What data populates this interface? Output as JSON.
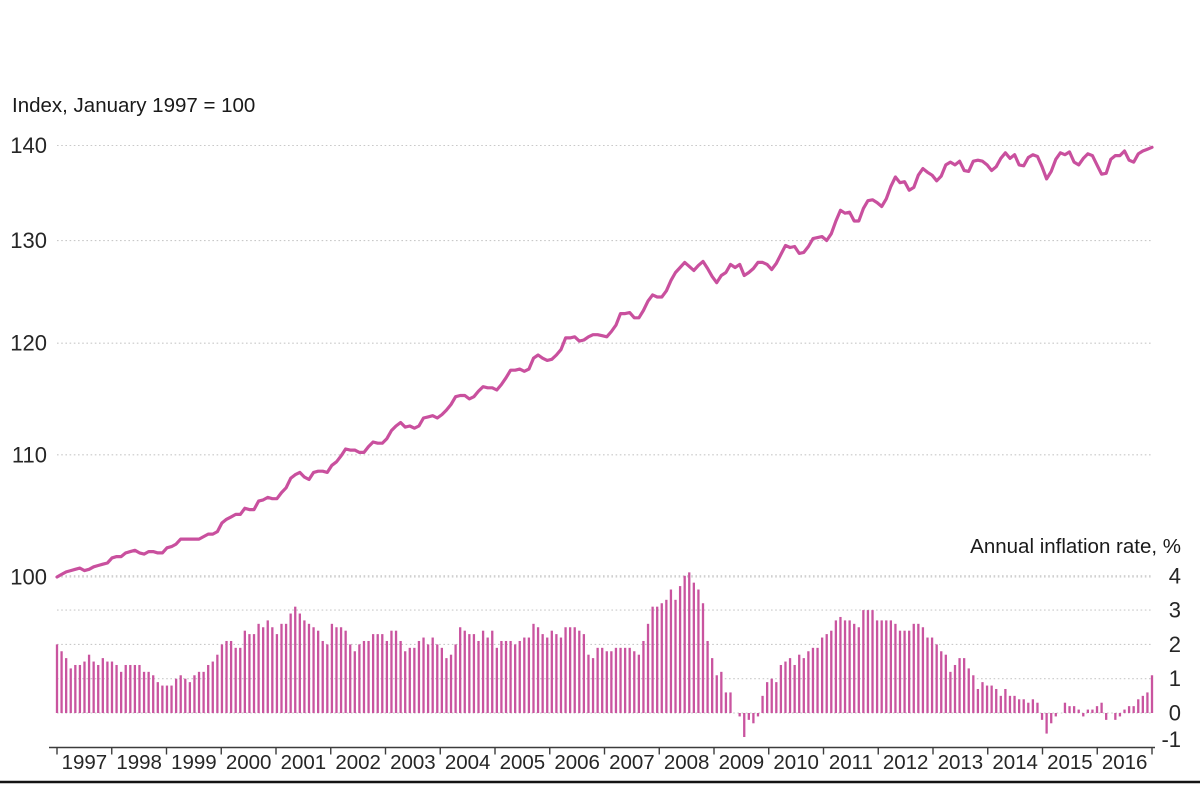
{
  "chart_data": {
    "type": "combo",
    "title": "",
    "left_axis": {
      "title": "Index, January 1997 = 100",
      "ticks": [
        140,
        130,
        120,
        110,
        100
      ],
      "scale": "log",
      "range": [
        100,
        140
      ]
    },
    "right_axis": {
      "title": "Annual inflation rate, %",
      "ticks": [
        4,
        3,
        2,
        1,
        0,
        -1
      ],
      "grid_ticks": [
        4,
        3,
        2,
        1,
        0
      ],
      "scale": "linear",
      "range": [
        -1,
        4
      ]
    },
    "x": {
      "frequency": "monthly",
      "start": "1997-01",
      "end": "2016-12",
      "year_labels": [
        "1997",
        "1998",
        "1999",
        "2000",
        "2001",
        "2002",
        "2003",
        "2004",
        "2005",
        "2006",
        "2007",
        "2008",
        "2009",
        "2010",
        "2011",
        "2012",
        "2013",
        "2014",
        "2015",
        "2016"
      ]
    },
    "grid": true,
    "legend_position": "none",
    "series": [
      {
        "name": "Price index (January 1997 = 100)",
        "type": "line",
        "color": "#c9509e",
        "values": [
          100.0,
          100.2,
          100.4,
          100.5,
          100.6,
          100.7,
          100.5,
          100.6,
          100.8,
          100.9,
          101.0,
          101.1,
          101.5,
          101.6,
          101.6,
          101.9,
          102.0,
          102.1,
          101.9,
          101.8,
          102.0,
          102.0,
          101.9,
          101.9,
          102.3,
          102.4,
          102.6,
          103.0,
          103.0,
          103.0,
          103.0,
          103.0,
          103.2,
          103.4,
          103.4,
          103.6,
          104.3,
          104.6,
          104.8,
          105.0,
          105.0,
          105.5,
          105.4,
          105.4,
          106.1,
          106.2,
          106.4,
          106.3,
          106.3,
          106.8,
          107.2,
          108.0,
          108.3,
          108.5,
          108.1,
          107.9,
          108.5,
          108.6,
          108.6,
          108.5,
          109.1,
          109.4,
          109.9,
          110.5,
          110.4,
          110.4,
          110.2,
          110.2,
          110.7,
          111.1,
          111.0,
          111.0,
          111.4,
          112.1,
          112.5,
          112.8,
          112.4,
          112.5,
          112.3,
          112.5,
          113.2,
          113.3,
          113.4,
          113.2,
          113.5,
          113.9,
          114.4,
          115.1,
          115.2,
          115.2,
          114.9,
          115.1,
          115.6,
          116.0,
          115.9,
          115.9,
          115.7,
          116.2,
          116.8,
          117.5,
          117.5,
          117.6,
          117.4,
          117.6,
          118.6,
          118.9,
          118.6,
          118.4,
          118.5,
          118.9,
          119.4,
          120.5,
          120.5,
          120.6,
          120.2,
          120.3,
          120.6,
          120.8,
          120.8,
          120.7,
          120.6,
          121.1,
          121.7,
          122.8,
          122.8,
          122.9,
          122.4,
          122.4,
          123.1,
          124.0,
          124.6,
          124.4,
          124.4,
          125.0,
          126.0,
          126.8,
          127.3,
          127.8,
          127.4,
          127.0,
          127.5,
          127.9,
          127.2,
          126.4,
          125.8,
          126.5,
          126.8,
          127.6,
          127.3,
          127.6,
          126.5,
          126.8,
          127.2,
          127.8,
          127.8,
          127.6,
          127.1,
          127.7,
          128.6,
          129.5,
          129.3,
          129.4,
          128.7,
          128.8,
          129.4,
          130.2,
          130.3,
          130.4,
          130.0,
          130.7,
          132.0,
          133.1,
          132.8,
          132.9,
          132.0,
          132.0,
          133.3,
          134.1,
          134.2,
          133.9,
          133.5,
          134.3,
          135.6,
          136.6,
          136.0,
          136.1,
          135.2,
          135.5,
          136.8,
          137.5,
          137.1,
          136.8,
          136.2,
          136.7,
          137.9,
          138.2,
          137.9,
          138.3,
          137.3,
          137.2,
          138.3,
          138.4,
          138.3,
          137.9,
          137.3,
          137.7,
          138.6,
          139.2,
          138.6,
          139.0,
          137.9,
          137.8,
          138.7,
          139.0,
          138.8,
          137.7,
          136.4,
          137.2,
          138.5,
          139.2,
          139.0,
          139.3,
          138.2,
          137.9,
          138.6,
          139.1,
          138.9,
          137.9,
          136.9,
          137.0,
          138.5,
          138.9,
          138.9,
          139.4,
          138.4,
          138.2,
          139.1,
          139.4,
          139.6,
          139.8
        ]
      },
      {
        "name": "Annual inflation rate, %",
        "type": "bar",
        "color": "#c9549f",
        "values": [
          2.0,
          1.8,
          1.6,
          1.3,
          1.4,
          1.4,
          1.5,
          1.7,
          1.5,
          1.4,
          1.6,
          1.5,
          1.5,
          1.4,
          1.2,
          1.4,
          1.4,
          1.4,
          1.4,
          1.2,
          1.2,
          1.1,
          0.9,
          0.8,
          0.8,
          0.8,
          1.0,
          1.1,
          1.0,
          0.9,
          1.1,
          1.2,
          1.2,
          1.4,
          1.5,
          1.7,
          2.0,
          2.1,
          2.1,
          1.9,
          1.9,
          2.4,
          2.3,
          2.3,
          2.6,
          2.5,
          2.7,
          2.5,
          2.3,
          2.6,
          2.6,
          2.9,
          3.1,
          2.9,
          2.7,
          2.6,
          2.5,
          2.4,
          2.1,
          2.0,
          2.6,
          2.5,
          2.5,
          2.4,
          2.0,
          1.8,
          2.0,
          2.1,
          2.1,
          2.3,
          2.3,
          2.3,
          2.1,
          2.4,
          2.4,
          2.1,
          1.8,
          1.9,
          1.9,
          2.1,
          2.2,
          2.0,
          2.2,
          2.0,
          1.9,
          1.6,
          1.7,
          2.0,
          2.5,
          2.4,
          2.3,
          2.3,
          2.1,
          2.4,
          2.2,
          2.4,
          1.9,
          2.1,
          2.1,
          2.1,
          2.0,
          2.1,
          2.2,
          2.2,
          2.6,
          2.5,
          2.3,
          2.2,
          2.4,
          2.3,
          2.2,
          2.5,
          2.5,
          2.5,
          2.4,
          2.3,
          1.7,
          1.6,
          1.9,
          1.9,
          1.8,
          1.8,
          1.9,
          1.9,
          1.9,
          1.9,
          1.8,
          1.7,
          2.1,
          2.6,
          3.1,
          3.1,
          3.2,
          3.3,
          3.6,
          3.3,
          3.7,
          4.0,
          4.1,
          3.8,
          3.6,
          3.2,
          2.1,
          1.6,
          1.1,
          1.2,
          0.6,
          0.6,
          0.0,
          -0.1,
          -0.7,
          -0.2,
          -0.3,
          -0.1,
          0.5,
          0.9,
          1.0,
          0.9,
          1.4,
          1.5,
          1.6,
          1.4,
          1.7,
          1.6,
          1.8,
          1.9,
          1.9,
          2.2,
          2.3,
          2.4,
          2.7,
          2.8,
          2.7,
          2.7,
          2.6,
          2.5,
          3.0,
          3.0,
          3.0,
          2.7,
          2.7,
          2.7,
          2.7,
          2.6,
          2.4,
          2.4,
          2.4,
          2.6,
          2.6,
          2.5,
          2.2,
          2.2,
          2.0,
          1.8,
          1.7,
          1.2,
          1.4,
          1.6,
          1.6,
          1.3,
          1.1,
          0.7,
          0.9,
          0.8,
          0.8,
          0.7,
          0.5,
          0.7,
          0.5,
          0.5,
          0.4,
          0.4,
          0.3,
          0.4,
          0.3,
          -0.2,
          -0.6,
          -0.3,
          -0.1,
          0.0,
          0.3,
          0.2,
          0.2,
          0.1,
          -0.1,
          0.1,
          0.1,
          0.2,
          0.3,
          -0.2,
          0.0,
          -0.2,
          -0.1,
          0.1,
          0.2,
          0.2,
          0.4,
          0.5,
          0.6,
          1.1
        ]
      }
    ]
  },
  "colors": {
    "line": "#c9509e",
    "bar": "#c9549f",
    "grid": "#c9c9c9",
    "axis": "#3c3c3c",
    "text": "#262626",
    "bottom_rule": "#141414",
    "background": "#ffffff"
  }
}
